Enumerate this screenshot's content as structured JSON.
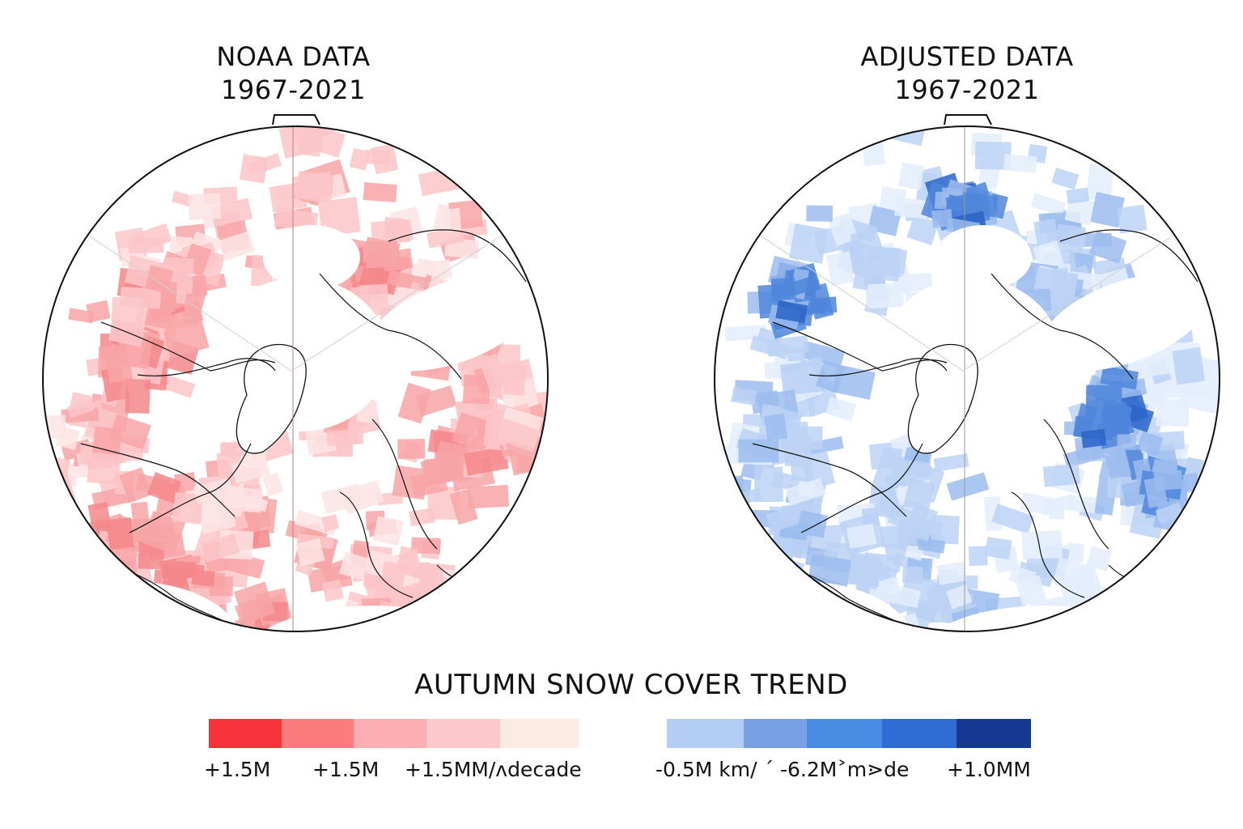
{
  "panels": [
    {
      "id": "noaa",
      "title_line1": "NOAA DATA",
      "title_line2": "1967-2021",
      "palette": "red"
    },
    {
      "id": "adjusted",
      "title_line1": "ADJUSTED DATA",
      "title_line2": "1967-2021",
      "palette": "blue"
    }
  ],
  "main_title": "AUTUMN SNOW COVER TREND",
  "legend_left": {
    "swatch_colors": [
      "#f8333c",
      "#fb7b7e",
      "#fcaeb2",
      "#fdc8cb",
      "#fdebe3"
    ],
    "labels": [
      "+1.5M",
      "+1.5M",
      "+1.5MM/ʌdecade"
    ]
  },
  "legend_right": {
    "swatch_colors": [
      "#b3cdf5",
      "#78a0e4",
      "#468ce2",
      "#2e6bd2",
      "#163a92"
    ],
    "labels": [
      "-0.5M km/ ´ -6.2M˃m⋗de",
      "+1.0MM"
    ]
  },
  "chart_data": [
    {
      "type": "heatmap",
      "title": "NOAA DATA 1967-2021",
      "projection": "north-polar-stereographic",
      "description": "Northern Hemisphere autumn snow cover trend; predominantly positive (red) trends across North America and Eurasia, white over ocean/Greenland/Arctic",
      "legend": {
        "colors": [
          "#f8333c",
          "#fb7b7e",
          "#fcaeb2",
          "#fdc8cb",
          "#fdebe3"
        ],
        "labels": [
          "+1.5M",
          "+1.5M",
          "+1.5MM/ʌdecade"
        ]
      }
    },
    {
      "type": "heatmap",
      "title": "ADJUSTED DATA 1967-2021",
      "projection": "north-polar-stereographic",
      "description": "Northern Hemisphere autumn snow cover trend after adjustment; predominantly negative (blue) trends, strongest over central Siberia and northern Canada",
      "legend": {
        "colors": [
          "#b3cdf5",
          "#78a0e4",
          "#468ce2",
          "#2e6bd2",
          "#163a92"
        ],
        "labels": [
          "-0.5M km/",
          "-6.2M˃m⋗de",
          "+1.0MM"
        ]
      }
    }
  ]
}
